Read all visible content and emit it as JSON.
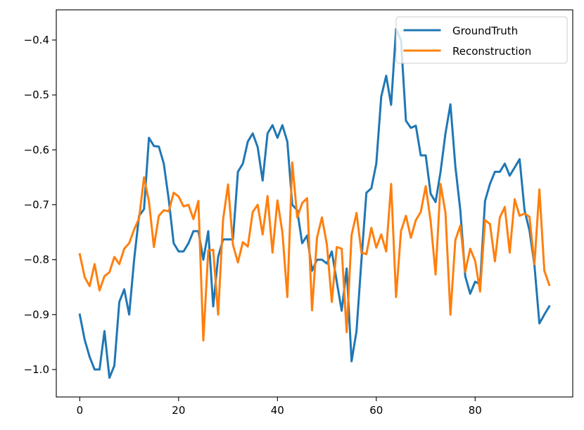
{
  "chart_data": {
    "type": "line",
    "title": "",
    "xlabel": "",
    "ylabel": "",
    "xlim": [
      -4.75,
      99.75
    ],
    "ylim": [
      -1.05,
      -0.345
    ],
    "xticks": [
      0,
      20,
      40,
      60,
      80
    ],
    "xtick_labels": [
      "0",
      "20",
      "40",
      "60",
      "80"
    ],
    "yticks": [
      -1.0,
      -0.9,
      -0.8,
      -0.7,
      -0.6,
      -0.5,
      -0.4
    ],
    "ytick_labels": [
      "−1.0",
      "−0.9",
      "−0.8",
      "−0.7",
      "−0.6",
      "−0.5",
      "−0.4"
    ],
    "grid": false,
    "legend_position": "top-right",
    "series": [
      {
        "name": "GroundTruth",
        "color": "#1f77b4",
        "x": [
          0,
          1,
          2,
          3,
          4,
          5,
          6,
          7,
          8,
          9,
          10,
          11,
          12,
          13,
          14,
          15,
          16,
          17,
          18,
          19,
          20,
          21,
          22,
          23,
          24,
          25,
          26,
          27,
          28,
          29,
          30,
          31,
          32,
          33,
          34,
          35,
          36,
          37,
          38,
          39,
          40,
          41,
          42,
          43,
          44,
          45,
          46,
          47,
          48,
          49,
          50,
          51,
          52,
          53,
          54,
          55,
          56,
          57,
          58,
          59,
          60,
          61,
          62,
          63,
          64,
          65,
          66,
          67,
          68,
          69,
          70,
          71,
          72,
          73,
          74,
          75,
          76,
          77,
          78,
          79,
          80,
          81,
          82,
          83,
          84,
          85,
          86,
          87,
          88,
          89,
          90,
          91,
          92,
          93,
          94,
          95
        ],
        "values": [
          -0.9,
          -0.946,
          -0.977,
          -1.0,
          -1.0,
          -0.93,
          -1.015,
          -0.993,
          -0.877,
          -0.854,
          -0.9,
          -0.8,
          -0.72,
          -0.708,
          -0.578,
          -0.593,
          -0.594,
          -0.625,
          -0.69,
          -0.77,
          -0.785,
          -0.785,
          -0.77,
          -0.748,
          -0.748,
          -0.8,
          -0.748,
          -0.885,
          -0.795,
          -0.763,
          -0.763,
          -0.763,
          -0.64,
          -0.625,
          -0.585,
          -0.57,
          -0.595,
          -0.656,
          -0.57,
          -0.555,
          -0.578,
          -0.555,
          -0.585,
          -0.7,
          -0.71,
          -0.77,
          -0.756,
          -0.82,
          -0.8,
          -0.8,
          -0.807,
          -0.785,
          -0.84,
          -0.893,
          -0.816,
          -0.985,
          -0.93,
          -0.8,
          -0.678,
          -0.67,
          -0.625,
          -0.503,
          -0.465,
          -0.518,
          -0.38,
          -0.4,
          -0.547,
          -0.56,
          -0.556,
          -0.61,
          -0.61,
          -0.68,
          -0.695,
          -0.64,
          -0.57,
          -0.517,
          -0.63,
          -0.71,
          -0.83,
          -0.862,
          -0.84,
          -0.845,
          -0.693,
          -0.662,
          -0.64,
          -0.64,
          -0.625,
          -0.647,
          -0.632,
          -0.617,
          -0.71,
          -0.747,
          -0.81,
          -0.916,
          -0.9,
          -0.885
        ]
      },
      {
        "name": "Reconstruction",
        "color": "#ff7f0e",
        "x": [
          0,
          1,
          2,
          3,
          4,
          5,
          6,
          7,
          8,
          9,
          10,
          11,
          12,
          13,
          14,
          15,
          16,
          17,
          18,
          19,
          20,
          21,
          22,
          23,
          24,
          25,
          26,
          27,
          28,
          29,
          30,
          31,
          32,
          33,
          34,
          35,
          36,
          37,
          38,
          39,
          40,
          41,
          42,
          43,
          44,
          45,
          46,
          47,
          48,
          49,
          50,
          51,
          52,
          53,
          54,
          55,
          56,
          57,
          58,
          59,
          60,
          61,
          62,
          63,
          64,
          65,
          66,
          67,
          68,
          69,
          70,
          71,
          72,
          73,
          74,
          75,
          76,
          77,
          78,
          79,
          80,
          81,
          82,
          83,
          84,
          85,
          86,
          87,
          88,
          89,
          90,
          91,
          92,
          93,
          94,
          95
        ],
        "values": [
          -0.79,
          -0.832,
          -0.848,
          -0.808,
          -0.856,
          -0.83,
          -0.823,
          -0.795,
          -0.808,
          -0.78,
          -0.77,
          -0.745,
          -0.725,
          -0.65,
          -0.694,
          -0.777,
          -0.72,
          -0.71,
          -0.712,
          -0.678,
          -0.685,
          -0.703,
          -0.7,
          -0.726,
          -0.693,
          -0.947,
          -0.783,
          -0.782,
          -0.9,
          -0.727,
          -0.663,
          -0.773,
          -0.805,
          -0.768,
          -0.776,
          -0.713,
          -0.7,
          -0.754,
          -0.684,
          -0.787,
          -0.692,
          -0.75,
          -0.868,
          -0.623,
          -0.723,
          -0.697,
          -0.688,
          -0.892,
          -0.76,
          -0.723,
          -0.772,
          -0.877,
          -0.777,
          -0.78,
          -0.932,
          -0.755,
          -0.715,
          -0.787,
          -0.79,
          -0.742,
          -0.778,
          -0.754,
          -0.785,
          -0.662,
          -0.868,
          -0.748,
          -0.72,
          -0.76,
          -0.728,
          -0.713,
          -0.666,
          -0.73,
          -0.827,
          -0.662,
          -0.715,
          -0.9,
          -0.764,
          -0.738,
          -0.822,
          -0.78,
          -0.802,
          -0.858,
          -0.728,
          -0.735,
          -0.803,
          -0.723,
          -0.704,
          -0.787,
          -0.69,
          -0.72,
          -0.716,
          -0.722,
          -0.808,
          -0.672,
          -0.82,
          -0.846
        ]
      }
    ]
  }
}
